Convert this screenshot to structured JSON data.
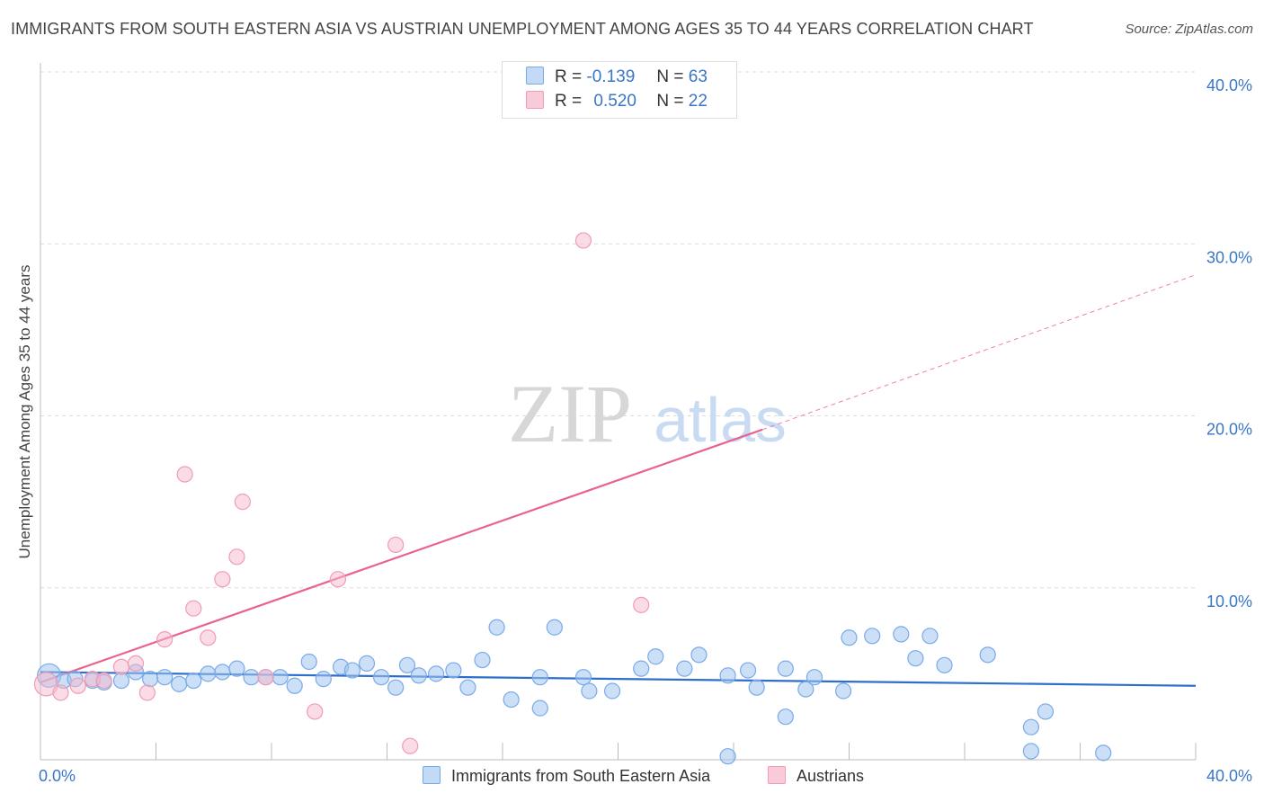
{
  "title": "IMMIGRANTS FROM SOUTH EASTERN ASIA VS AUSTRIAN UNEMPLOYMENT AMONG AGES 35 TO 44 YEARS CORRELATION CHART",
  "source": "Source: ZipAtlas.com",
  "watermark": {
    "zip": "ZIP",
    "atlas": "atlas"
  },
  "legend": {
    "blue": {
      "r_label": "R =",
      "r_value": "-0.139",
      "n_label": "N =",
      "n_value": "63"
    },
    "pink": {
      "r_label": "R =",
      "r_value": "0.520",
      "n_label": "N =",
      "n_value": "22"
    }
  },
  "chart_data": {
    "type": "scatter",
    "ylabel": "Unemployment Among Ages 35 to 44 years",
    "xlim": [
      0,
      40
    ],
    "ylim": [
      0,
      40
    ],
    "x_tick_labels": [
      "0.0%",
      "40.0%"
    ],
    "y_ticks": [
      10,
      20,
      30,
      40
    ],
    "y_tick_labels": [
      "10.0%",
      "20.0%",
      "30.0%",
      "40.0%"
    ],
    "grid": true,
    "colors": {
      "blue": "#7aaae8",
      "blue_line": "#2f6fcc",
      "pink": "#f29bb5",
      "pink_line": "#e8638f"
    },
    "series": [
      {
        "name": "Immigrants from South Eastern Asia",
        "color": "#7aaae8",
        "points": [
          [
            0.3,
            4.9
          ],
          [
            0.8,
            4.6
          ],
          [
            1.2,
            4.7
          ],
          [
            1.8,
            4.6
          ],
          [
            2.2,
            4.5
          ],
          [
            2.8,
            4.6
          ],
          [
            3.3,
            5.1
          ],
          [
            3.8,
            4.7
          ],
          [
            4.3,
            4.8
          ],
          [
            4.8,
            4.4
          ],
          [
            5.3,
            4.6
          ],
          [
            5.8,
            5.0
          ],
          [
            6.3,
            5.1
          ],
          [
            6.8,
            5.3
          ],
          [
            7.3,
            4.8
          ],
          [
            7.8,
            4.8
          ],
          [
            8.3,
            4.8
          ],
          [
            8.8,
            4.3
          ],
          [
            9.3,
            5.7
          ],
          [
            9.8,
            4.7
          ],
          [
            10.4,
            5.4
          ],
          [
            10.8,
            5.2
          ],
          [
            11.3,
            5.6
          ],
          [
            11.8,
            4.8
          ],
          [
            12.3,
            4.2
          ],
          [
            12.7,
            5.5
          ],
          [
            13.1,
            4.9
          ],
          [
            13.7,
            5.0
          ],
          [
            14.3,
            5.2
          ],
          [
            14.8,
            4.2
          ],
          [
            15.3,
            5.8
          ],
          [
            15.8,
            7.7
          ],
          [
            16.3,
            3.5
          ],
          [
            17.3,
            4.8
          ],
          [
            17.3,
            3.0
          ],
          [
            17.8,
            7.7
          ],
          [
            18.8,
            4.8
          ],
          [
            19.0,
            4.0
          ],
          [
            19.8,
            4.0
          ],
          [
            20.8,
            5.3
          ],
          [
            21.3,
            6.0
          ],
          [
            22.3,
            5.3
          ],
          [
            22.8,
            6.1
          ],
          [
            23.8,
            0.2
          ],
          [
            23.8,
            4.9
          ],
          [
            24.5,
            5.2
          ],
          [
            24.8,
            4.2
          ],
          [
            25.8,
            5.3
          ],
          [
            25.8,
            2.5
          ],
          [
            26.5,
            4.1
          ],
          [
            26.8,
            4.8
          ],
          [
            27.8,
            4.0
          ],
          [
            28.0,
            7.1
          ],
          [
            28.8,
            7.2
          ],
          [
            29.8,
            7.3
          ],
          [
            30.3,
            5.9
          ],
          [
            30.8,
            7.2
          ],
          [
            31.3,
            5.5
          ],
          [
            32.8,
            6.1
          ],
          [
            34.3,
            1.9
          ],
          [
            34.3,
            0.5
          ],
          [
            34.8,
            2.8
          ],
          [
            36.8,
            0.4
          ]
        ],
        "trend": [
          [
            0,
            5.1
          ],
          [
            40,
            4.3
          ]
        ]
      },
      {
        "name": "Austrians",
        "color": "#f29bb5",
        "points": [
          [
            0.2,
            4.4
          ],
          [
            0.7,
            3.9
          ],
          [
            1.3,
            4.3
          ],
          [
            1.8,
            4.7
          ],
          [
            2.2,
            4.6
          ],
          [
            2.8,
            5.4
          ],
          [
            3.3,
            5.6
          ],
          [
            3.7,
            3.9
          ],
          [
            4.3,
            7.0
          ],
          [
            5.0,
            16.6
          ],
          [
            5.3,
            8.8
          ],
          [
            5.8,
            7.1
          ],
          [
            6.3,
            10.5
          ],
          [
            6.8,
            11.8
          ],
          [
            7.0,
            15.0
          ],
          [
            7.8,
            4.8
          ],
          [
            9.5,
            2.8
          ],
          [
            10.3,
            10.5
          ],
          [
            12.3,
            12.5
          ],
          [
            12.8,
            0.8
          ],
          [
            18.8,
            30.2
          ],
          [
            20.8,
            9.0
          ]
        ],
        "trend": [
          [
            0,
            4.5
          ],
          [
            25,
            19.2
          ]
        ],
        "trend_extended": [
          [
            25,
            19.2
          ],
          [
            40,
            28.2
          ]
        ]
      }
    ]
  },
  "bottom_legend": {
    "blue_label": "Immigrants from South Eastern Asia",
    "pink_label": "Austrians"
  }
}
